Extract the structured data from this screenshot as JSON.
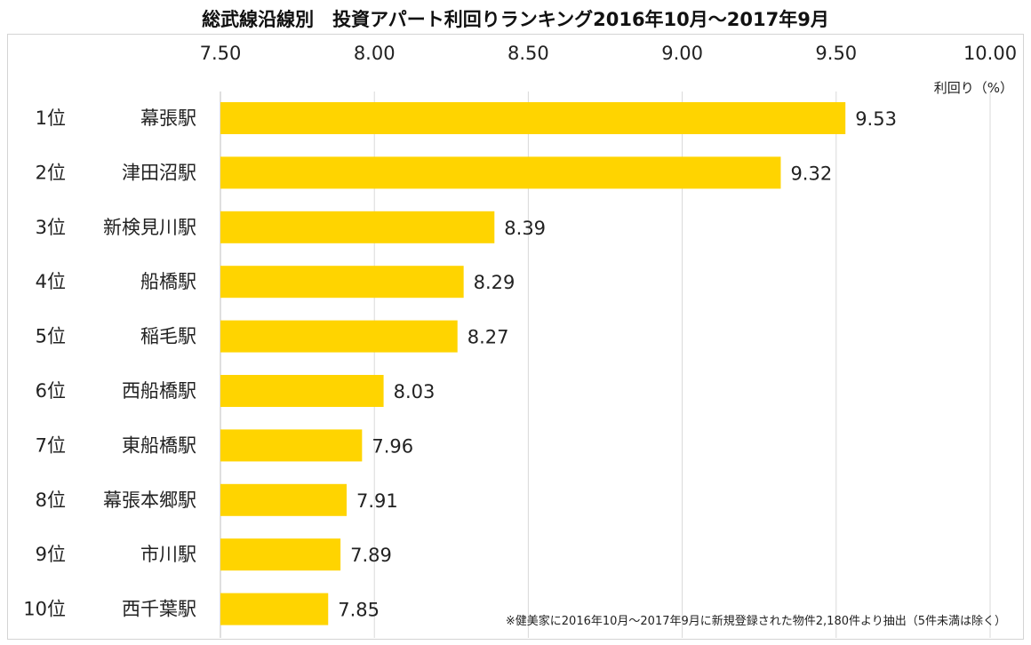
{
  "chart_data": {
    "type": "bar",
    "orientation": "horizontal",
    "title": "総武線沿線別　投資アパート利回りランキング2016年10月～2017年9月",
    "xlabel": "利回り（%）",
    "xlim": [
      7.5,
      10.0
    ],
    "xticks": [
      "7.50",
      "8.00",
      "8.50",
      "9.00",
      "9.50",
      "10.00"
    ],
    "ranks": [
      "1位",
      "2位",
      "3位",
      "4位",
      "5位",
      "6位",
      "7位",
      "8位",
      "9位",
      "10位"
    ],
    "categories": [
      "幕張駅",
      "津田沼駅",
      "新検見川駅",
      "船橋駅",
      "稲毛駅",
      "西船橋駅",
      "東船橋駅",
      "幕張本郷駅",
      "市川駅",
      "西千葉駅"
    ],
    "values": [
      9.53,
      9.32,
      8.39,
      8.29,
      8.27,
      8.03,
      7.96,
      7.91,
      7.89,
      7.85
    ],
    "value_labels": [
      "9.53",
      "9.32",
      "8.39",
      "8.29",
      "8.27",
      "8.03",
      "7.96",
      "7.91",
      "7.89",
      "7.85"
    ],
    "footnote": "※健美家に2016年10月～2017年9月に新規登録された物件2,180件より抽出（5件未満は除く）",
    "grid": true,
    "legend": "none",
    "colors": {
      "bar": "#FFD400",
      "grid": "#d9d9d9",
      "axis": "#bfbfbf"
    }
  }
}
